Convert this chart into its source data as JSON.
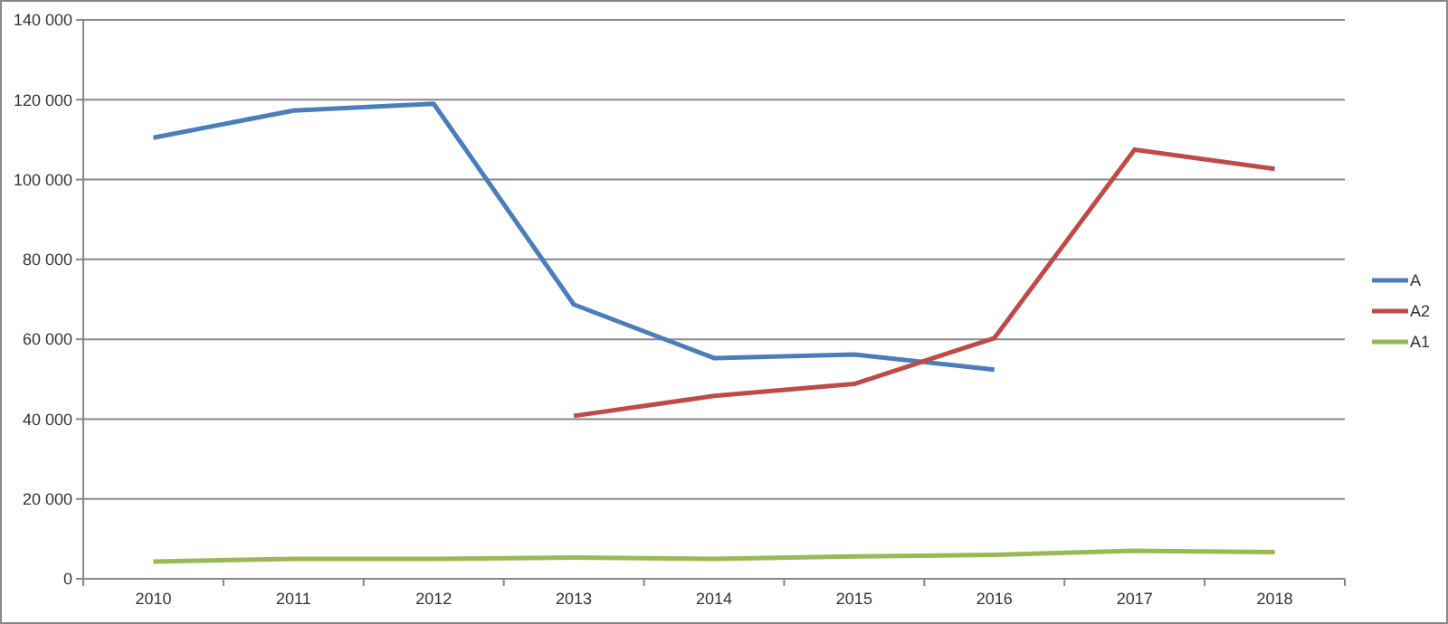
{
  "chart_data": {
    "type": "line",
    "categories": [
      "2010",
      "2011",
      "2012",
      "2013",
      "2014",
      "2015",
      "2016",
      "2017",
      "2018"
    ],
    "series": [
      {
        "name": "A",
        "color": "#4a7ebb",
        "values": [
          110500,
          117300,
          119000,
          68700,
          55300,
          56200,
          52400,
          null,
          null
        ]
      },
      {
        "name": "A2",
        "color": "#be4b48",
        "values": [
          null,
          null,
          null,
          40800,
          45800,
          48800,
          60300,
          107500,
          102700
        ]
      },
      {
        "name": "A1",
        "color": "#98b954",
        "values": [
          4300,
          5000,
          5000,
          5300,
          5000,
          5600,
          6000,
          7000,
          6700
        ]
      }
    ],
    "ylim": [
      0,
      140000
    ],
    "yticks": [
      {
        "value": 0,
        "label": "0"
      },
      {
        "value": 20000,
        "label": "20 000"
      },
      {
        "value": 40000,
        "label": "40 000"
      },
      {
        "value": 60000,
        "label": "60 000"
      },
      {
        "value": 80000,
        "label": "80 000"
      },
      {
        "value": 100000,
        "label": "100 000"
      },
      {
        "value": 120000,
        "label": "120 000"
      },
      {
        "value": 140000,
        "label": "140 000"
      }
    ],
    "grid": "y",
    "legend": "right",
    "marker": "none",
    "line_style": "solid"
  }
}
